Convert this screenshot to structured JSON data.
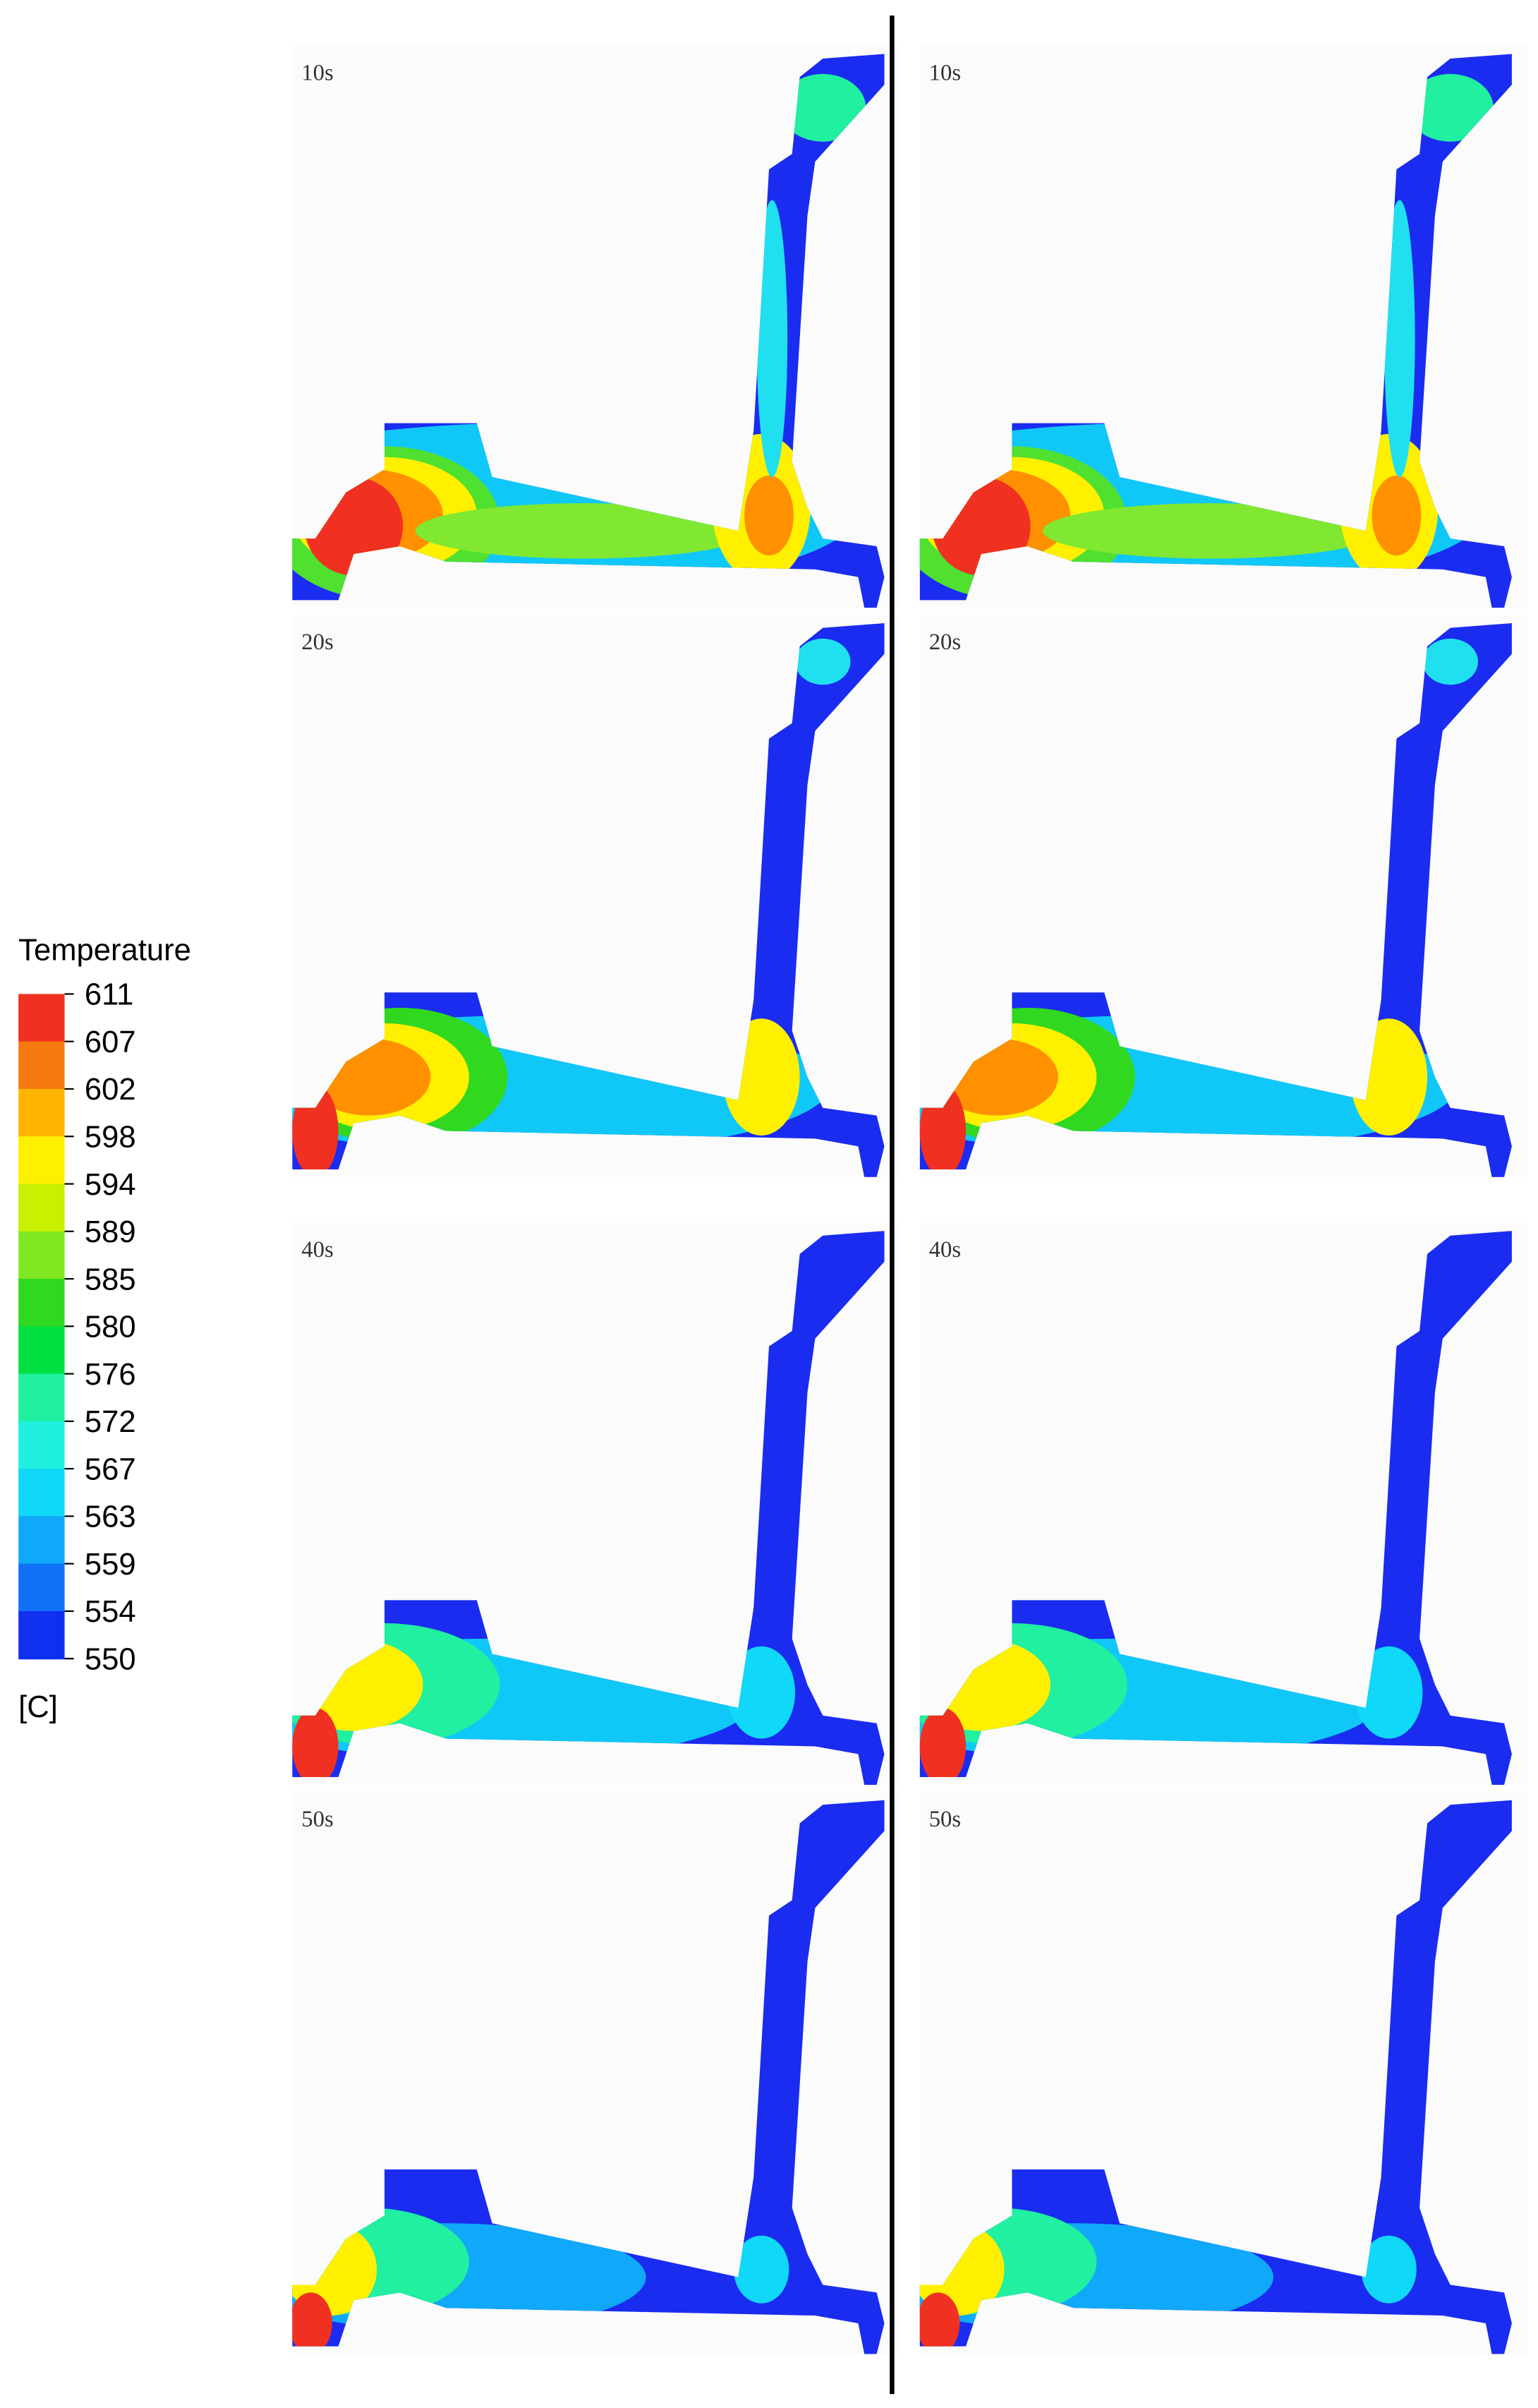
{
  "legend": {
    "title": "Temperature",
    "levels": [
      "611",
      "607",
      "602",
      "598",
      "594",
      "589",
      "585",
      "580",
      "576",
      "572",
      "567",
      "563",
      "559",
      "554",
      "550"
    ],
    "unit": "[C]"
  },
  "panels": {
    "left": [
      "10s",
      "20s",
      "40s",
      "50s"
    ],
    "right": [
      "10s",
      "20s",
      "40s",
      "50s"
    ]
  }
}
